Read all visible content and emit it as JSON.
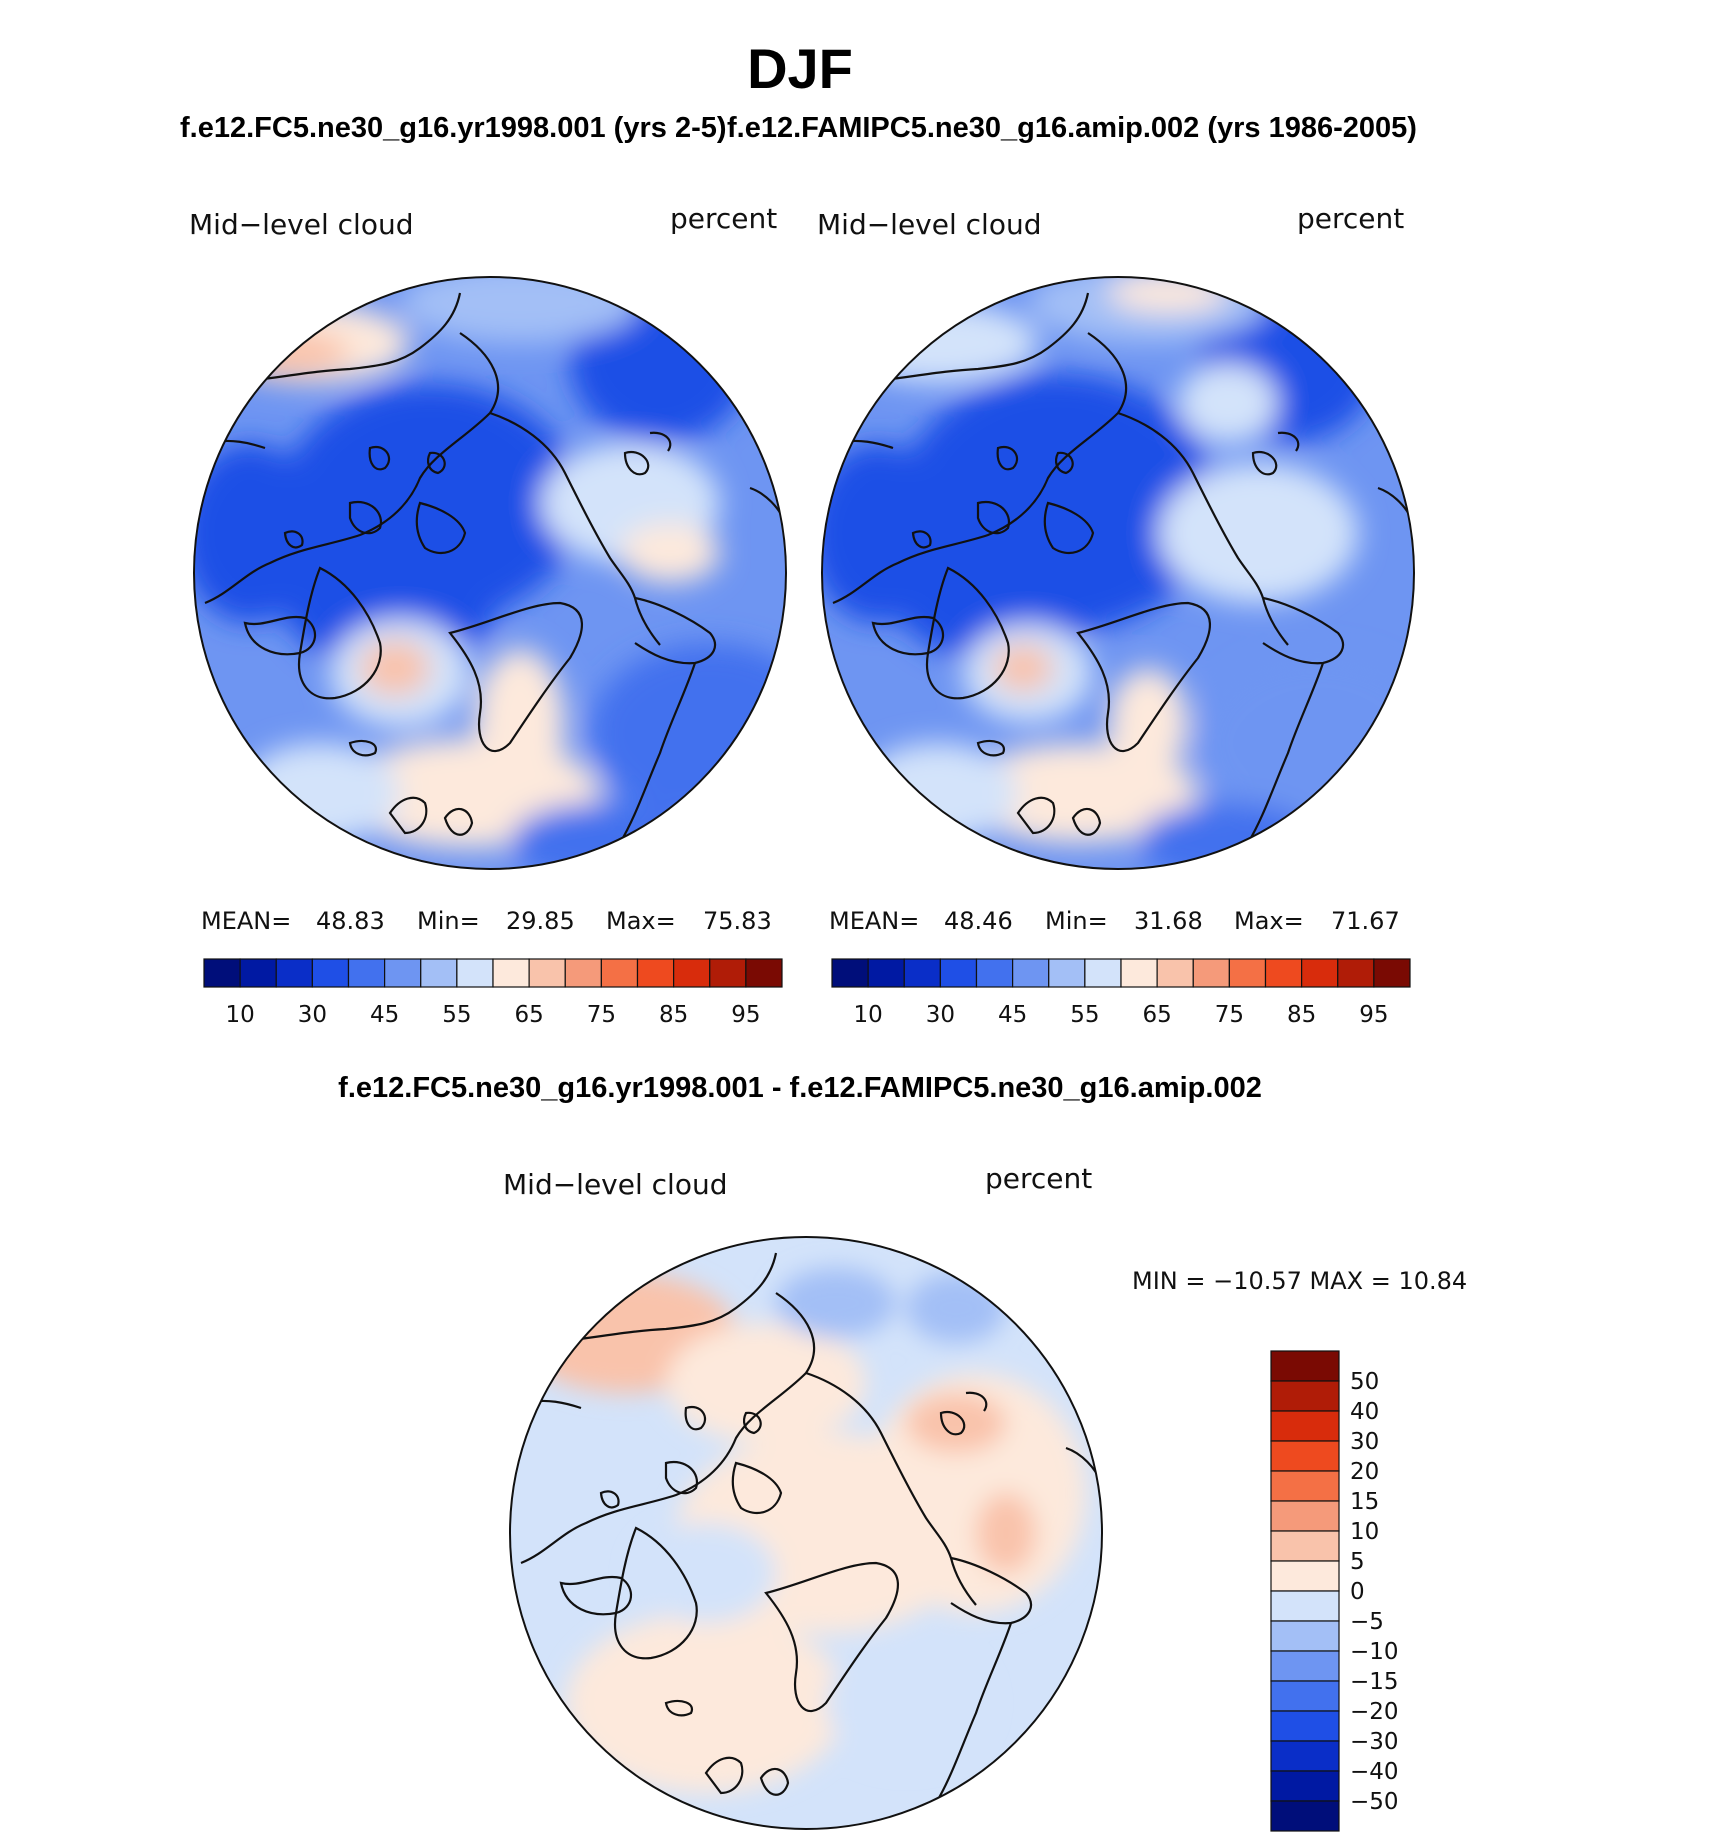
{
  "figure": {
    "title": "DJF",
    "run_a_title": "f.e12.FC5.ne30_g16.yr1998.001 (yrs 2-5)",
    "run_b_title": "f.e12.FAMIPC5.ne30_g16.amip.002 (yrs 1986-2005)",
    "diff_title": "f.e12.FC5.ne30_g16.yr1998.001 - f.e12.FAMIPC5.ne30_g16.amip.002"
  },
  "colors": {
    "abs_scale": [
      "#000e7a",
      "#0019a3",
      "#0a2ec8",
      "#1f4fe6",
      "#4271ee",
      "#6e95f2",
      "#a3bff6",
      "#d3e3fa",
      "#fde9dc",
      "#f9c3ab",
      "#f59a7a",
      "#f47045",
      "#ee4a1f",
      "#d82c0c",
      "#b01c07",
      "#7a0a03"
    ],
    "diff_scale": [
      "#000e7a",
      "#0019a3",
      "#0a2ec8",
      "#1f4fe6",
      "#4271ee",
      "#6e95f2",
      "#a3bff6",
      "#d3e3fa",
      "#fde9dc",
      "#f9c3ab",
      "#f59a7a",
      "#f47045",
      "#ee4a1f",
      "#d82c0c",
      "#b01c07",
      "#7a0a03"
    ]
  },
  "chart_data": [
    {
      "type": "heatmap",
      "panel": "run_a",
      "variable_label": "Mid−level cloud",
      "units_label": "percent",
      "projection": "north polar stereographic",
      "stats": {
        "mean_label": "MEAN=",
        "mean": "48.83",
        "min_label": "Min=",
        "min": "29.85",
        "max_label": "Max=",
        "max": "75.83"
      },
      "colorbar_levels": [
        5,
        10,
        20,
        30,
        40,
        45,
        50,
        55,
        60,
        65,
        70,
        75,
        80,
        85,
        90,
        95
      ],
      "colorbar_tick_labels": [
        "10",
        "30",
        "45",
        "55",
        "65",
        "75",
        "85",
        "95"
      ]
    },
    {
      "type": "heatmap",
      "panel": "run_b",
      "variable_label": "Mid−level cloud",
      "units_label": "percent",
      "projection": "north polar stereographic",
      "stats": {
        "mean_label": "MEAN=",
        "mean": "48.46",
        "min_label": "Min=",
        "min": "31.68",
        "max_label": "Max=",
        "max": "71.67"
      },
      "colorbar_levels": [
        5,
        10,
        20,
        30,
        40,
        45,
        50,
        55,
        60,
        65,
        70,
        75,
        80,
        85,
        90,
        95
      ],
      "colorbar_tick_labels": [
        "10",
        "30",
        "45",
        "55",
        "65",
        "75",
        "85",
        "95"
      ]
    },
    {
      "type": "heatmap",
      "panel": "difference",
      "variable_label": "Mid−level cloud",
      "units_label": "percent",
      "projection": "north polar stereographic",
      "stats_text": "MIN = −10.57 MAX =   10.84",
      "colorbar_levels": [
        -50,
        -40,
        -30,
        -20,
        -15,
        -10,
        -5,
        0,
        5,
        10,
        15,
        20,
        30,
        40,
        50
      ],
      "colorbar_tick_labels": [
        "50",
        "40",
        "30",
        "20",
        "15",
        "10",
        "5",
        "0",
        "−5",
        "−10",
        "−15",
        "−20",
        "−30",
        "−40",
        "−50"
      ]
    }
  ]
}
